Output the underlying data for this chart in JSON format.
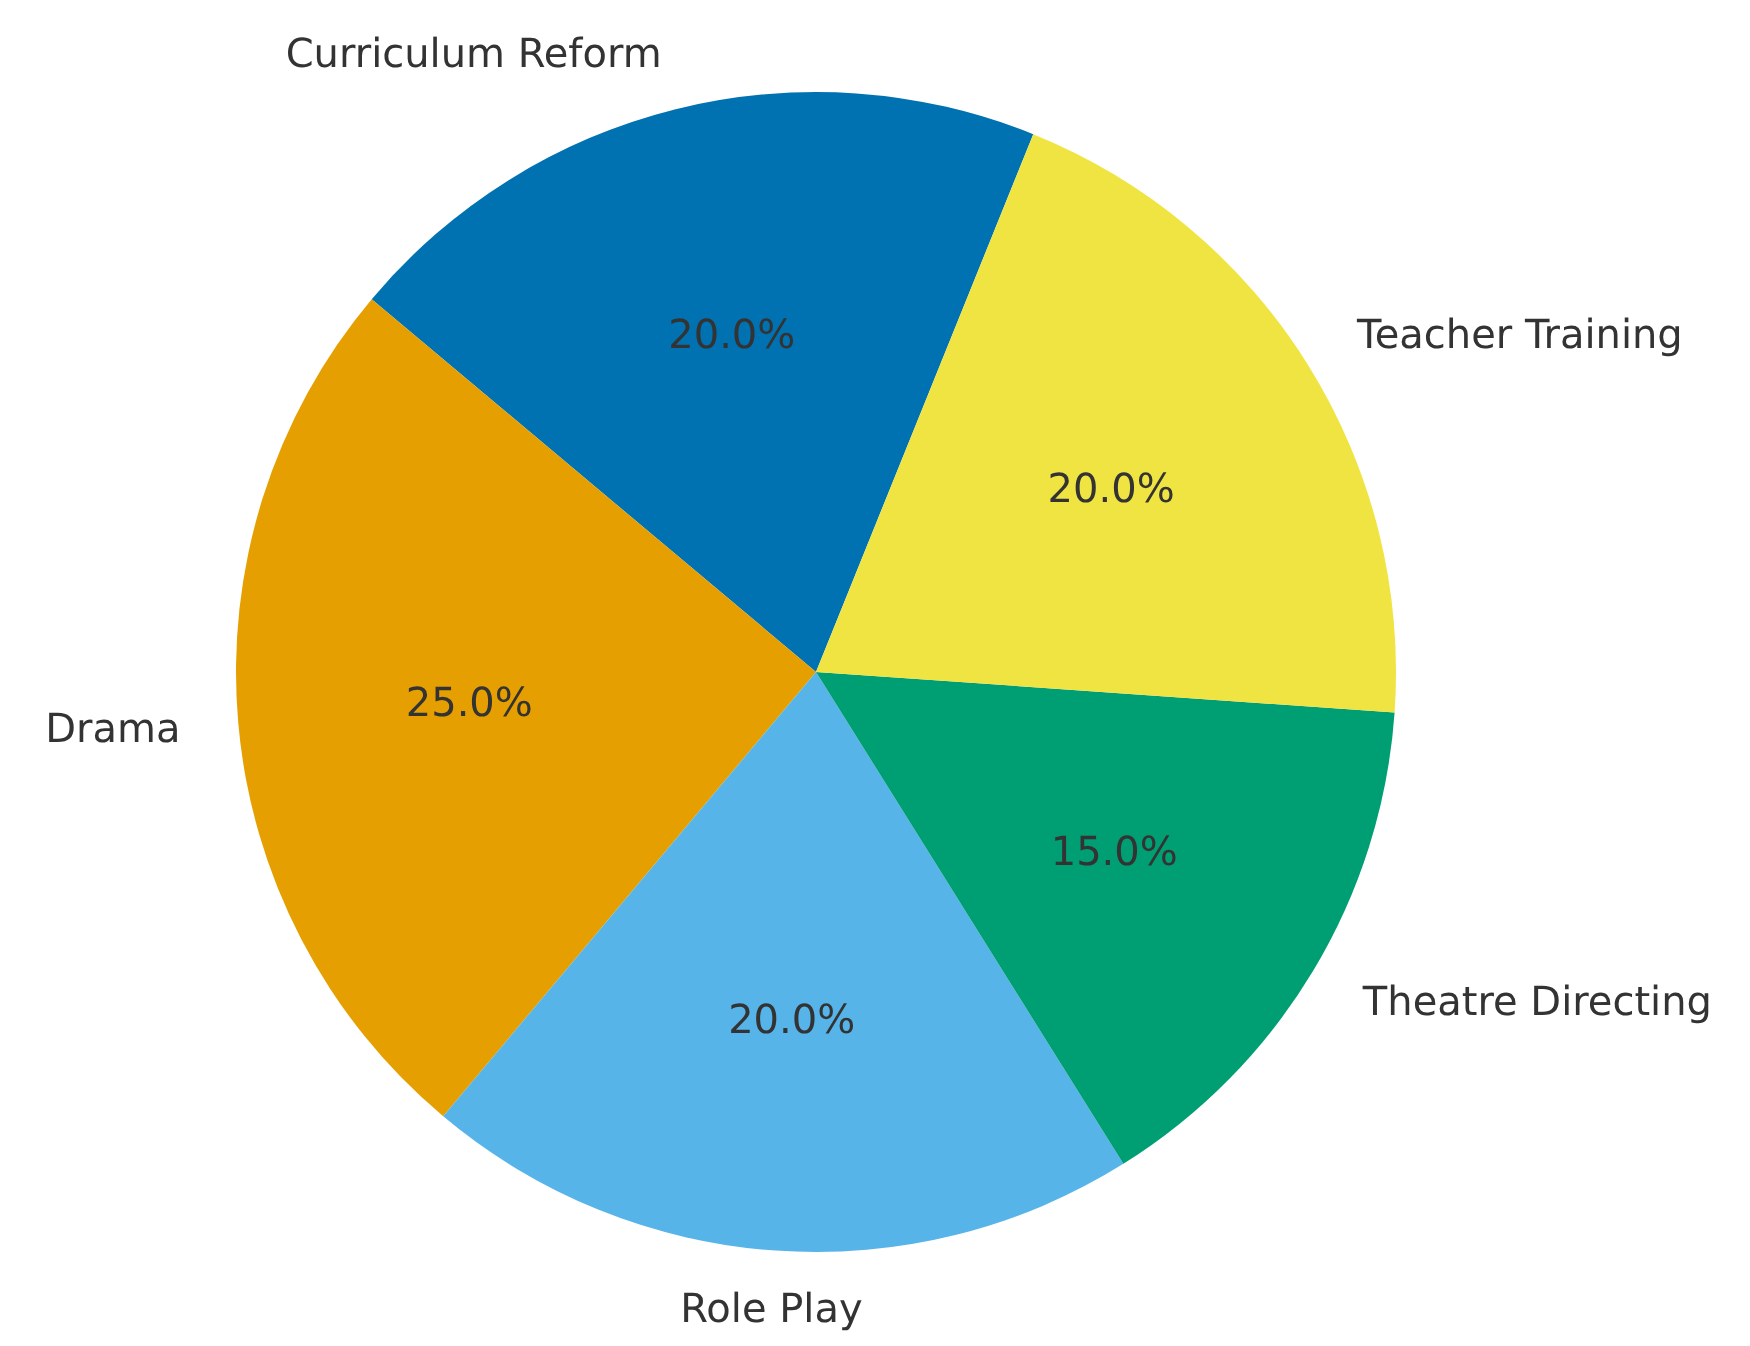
{
  "chart_data": {
    "type": "pie",
    "categories": [
      "Curriculum Reform",
      "Drama",
      "Role Play",
      "Theatre Directing",
      "Teacher Training"
    ],
    "values": [
      20,
      25,
      20,
      15,
      20
    ],
    "colors": [
      "#0072b2",
      "#e69f00",
      "#56b4e9",
      "#009e73",
      "#f0e442"
    ],
    "value_labels": [
      "20.0%",
      "25.0%",
      "20.0%",
      "15.0%",
      "20.0%"
    ]
  }
}
